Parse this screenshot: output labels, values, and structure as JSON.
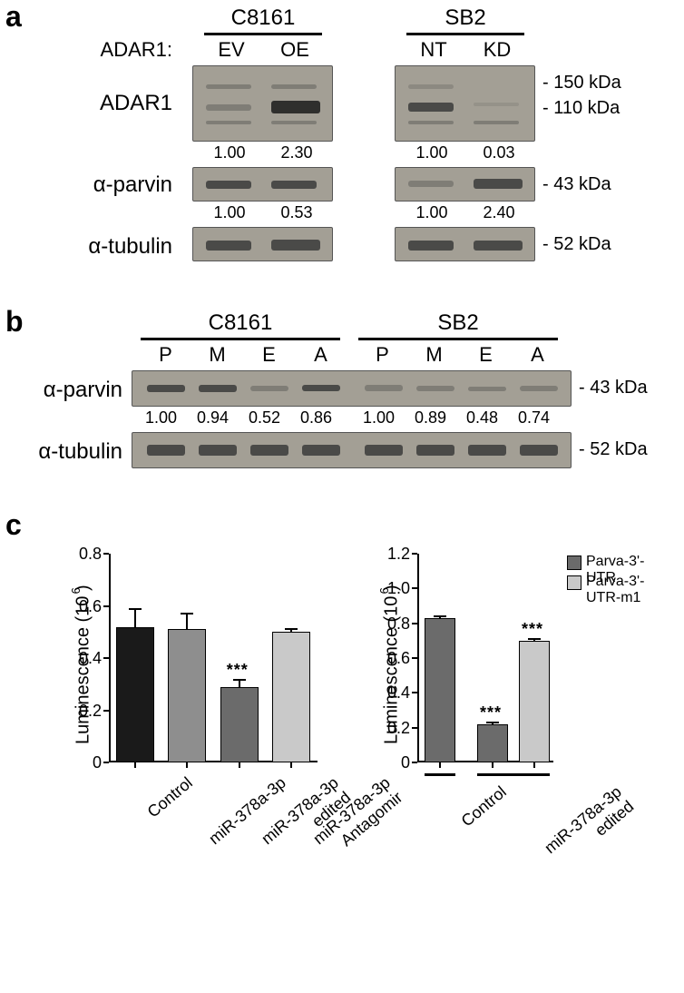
{
  "panelLabels": {
    "a": "a",
    "b": "b",
    "c": "c"
  },
  "panelA": {
    "rowHeaderLabel": "ADAR1:",
    "cellLines": {
      "left": "C8161",
      "right": "SB2"
    },
    "conditions": {
      "leftA": "EV",
      "leftB": "OE",
      "rightA": "NT",
      "rightB": "KD"
    },
    "rows": {
      "adar1": {
        "label": "ADAR1",
        "quantLeft": [
          "1.00",
          "2.30"
        ],
        "quantRight": [
          "1.00",
          "0.03"
        ],
        "mw": [
          "- 150 kDa",
          "- 110 kDa"
        ]
      },
      "parvin": {
        "label": "α-parvin",
        "quantLeft": [
          "1.00",
          "0.53"
        ],
        "quantRight": [
          "1.00",
          "2.40"
        ],
        "mw": "- 43 kDa"
      },
      "tubulin": {
        "label": "α-tubulin",
        "mw": "- 52 kDa"
      }
    }
  },
  "panelB": {
    "cellLines": {
      "left": "C8161",
      "right": "SB2"
    },
    "conditions": [
      "P",
      "M",
      "E",
      "A",
      "P",
      "M",
      "E",
      "A"
    ],
    "rows": {
      "parvin": {
        "label": "α-parvin",
        "quant": [
          "1.00",
          "0.94",
          "0.52",
          "0.86",
          "1.00",
          "0.89",
          "0.48",
          "0.74"
        ],
        "mw": "- 43 kDa"
      },
      "tubulin": {
        "label": "α-tubulin",
        "mw": "- 52 kDa"
      }
    }
  },
  "panelC": {
    "yTitle": "Luminescence (10 )",
    "yTitleSup": "6",
    "left": {
      "ylim": [
        0,
        0.8
      ],
      "yticks": [
        "0",
        "0.2",
        "0.4",
        "0.6",
        "0.8"
      ],
      "categories": [
        "Control",
        "miR-378a-3p",
        "miR-378a-3p edited",
        "miR-378a-3p Antagomir"
      ],
      "values": [
        0.52,
        0.51,
        0.29,
        0.5
      ],
      "errors": [
        0.07,
        0.065,
        0.03,
        0.015
      ],
      "colors": [
        "#1a1a1a",
        "#8e8e8e",
        "#6b6b6b",
        "#c9c9c9"
      ],
      "sig": {
        "index": 2,
        "text": "***"
      }
    },
    "right": {
      "ylim": [
        0,
        1.2
      ],
      "yticks": [
        "0",
        "0.2",
        "0.4",
        "0.6",
        "0.8",
        "1.0",
        "1.2"
      ],
      "legend": [
        {
          "color": "#6b6b6b",
          "label": "Parva-3'-UTR"
        },
        {
          "color": "#c9c9c9",
          "label": "Parva-3'-UTR-m1"
        }
      ],
      "groups": [
        "Control",
        "miR-378a-3p edited"
      ],
      "values": [
        0.83,
        0.22,
        0.7
      ],
      "errors": [
        0.015,
        0.015,
        0.015
      ],
      "colors": [
        "#6b6b6b",
        "#6b6b6b",
        "#c9c9c9"
      ],
      "sig": [
        {
          "index": 1,
          "text": "***"
        },
        {
          "index": 2,
          "text": "***"
        }
      ]
    }
  }
}
